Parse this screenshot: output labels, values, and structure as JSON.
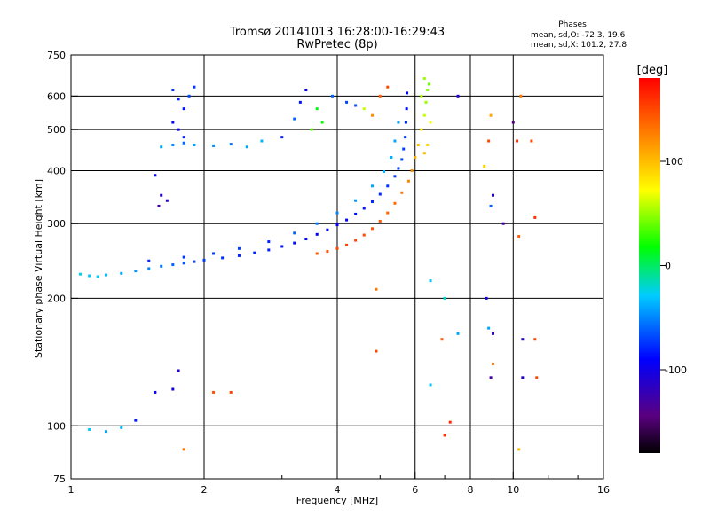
{
  "chart_data": {
    "type": "scatter",
    "title": "Tromsø 20141013 16:28:00-16:29:43",
    "subtitle": "RwPretec (8p)",
    "xlabel": "Frequency [MHz]",
    "ylabel": "Stationary phase Virtual Height [km]",
    "x_scale": "log",
    "y_scale": "log",
    "xlim": [
      1,
      16
    ],
    "ylim": [
      75,
      750
    ],
    "x_ticks": [
      1,
      2,
      4,
      6,
      8,
      10,
      16
    ],
    "x_tick_labels": [
      "1",
      "2",
      "4",
      "6",
      "8",
      "10",
      "16"
    ],
    "x_minor_ticks": [
      3,
      5,
      7,
      9,
      12,
      14
    ],
    "y_ticks": [
      75,
      100,
      200,
      300,
      400,
      500,
      600,
      750
    ],
    "y_tick_labels": [
      "75",
      "100",
      "200",
      "300",
      "400",
      "500",
      "600",
      "750"
    ],
    "grid": true,
    "phases": {
      "heading": "Phases",
      "line1": "mean, sd,O: -72.3, 19.6",
      "line2": "mean, sd,X: 101.2, 27.8"
    },
    "colorbar": {
      "label": "[deg]",
      "range": [
        -180,
        180
      ],
      "ticks": [
        100,
        0,
        -100
      ],
      "tick_labels": [
        "100",
        "0",
        "-100"
      ],
      "colormap": "rainbow"
    },
    "series": [
      {
        "points": [
          [
            1.05,
            228,
            -25
          ],
          [
            1.1,
            226,
            -30
          ],
          [
            1.15,
            225,
            -28
          ],
          [
            1.2,
            227,
            -35
          ],
          [
            1.3,
            229,
            -40
          ],
          [
            1.4,
            232,
            -45
          ],
          [
            1.5,
            235,
            -50
          ],
          [
            1.6,
            238,
            -55
          ],
          [
            1.7,
            240,
            -60
          ],
          [
            1.8,
            242,
            -65
          ],
          [
            1.9,
            244,
            -70
          ],
          [
            2.0,
            246,
            -72
          ],
          [
            2.2,
            249,
            -75
          ],
          [
            2.4,
            252,
            -78
          ],
          [
            2.6,
            256,
            -80
          ],
          [
            2.8,
            260,
            -82
          ],
          [
            3.0,
            265,
            -84
          ],
          [
            3.2,
            270,
            -86
          ],
          [
            3.4,
            276,
            -88
          ],
          [
            3.6,
            283,
            -90
          ],
          [
            3.8,
            290,
            -90
          ],
          [
            4.0,
            298,
            -90
          ],
          [
            4.2,
            306,
            -88
          ],
          [
            4.4,
            316,
            -86
          ],
          [
            4.6,
            326,
            -84
          ],
          [
            4.8,
            338,
            -80
          ],
          [
            5.0,
            352,
            -78
          ],
          [
            5.2,
            368,
            -75
          ],
          [
            5.4,
            388,
            -72
          ],
          [
            5.5,
            405,
            -70
          ],
          [
            5.6,
            425,
            -70
          ],
          [
            5.65,
            450,
            -72
          ],
          [
            5.7,
            480,
            -75
          ],
          [
            5.72,
            520,
            -80
          ],
          [
            5.74,
            560,
            -85
          ],
          [
            5.75,
            610,
            -90
          ],
          [
            1.5,
            245,
            -78
          ],
          [
            1.8,
            250,
            -75
          ],
          [
            2.1,
            255,
            -72
          ],
          [
            2.4,
            262,
            -70
          ],
          [
            2.8,
            272,
            -80
          ],
          [
            3.2,
            285,
            -60
          ],
          [
            3.6,
            300,
            -55
          ],
          [
            4.0,
            318,
            -50
          ],
          [
            4.4,
            340,
            -45
          ],
          [
            4.8,
            368,
            -40
          ],
          [
            5.1,
            398,
            -35
          ],
          [
            5.3,
            430,
            -38
          ],
          [
            5.4,
            470,
            -40
          ],
          [
            5.5,
            520,
            -42
          ],
          [
            1.7,
            620,
            -75
          ],
          [
            1.75,
            590,
            -80
          ],
          [
            1.8,
            560,
            -85
          ],
          [
            1.7,
            520,
            -90
          ],
          [
            1.75,
            500,
            -95
          ],
          [
            1.8,
            480,
            -80
          ],
          [
            1.85,
            600,
            -70
          ],
          [
            1.9,
            630,
            -75
          ],
          [
            1.6,
            455,
            -40
          ],
          [
            1.7,
            460,
            -50
          ],
          [
            1.8,
            465,
            -60
          ],
          [
            1.9,
            460,
            -45
          ],
          [
            2.1,
            458,
            -50
          ],
          [
            2.3,
            462,
            -55
          ],
          [
            2.5,
            455,
            -40
          ],
          [
            2.7,
            470,
            -35
          ],
          [
            3.0,
            480,
            -80
          ],
          [
            3.2,
            530,
            -60
          ],
          [
            3.3,
            580,
            -85
          ],
          [
            3.4,
            620,
            -95
          ],
          [
            3.6,
            560,
            15
          ],
          [
            3.7,
            520,
            20
          ],
          [
            3.5,
            500,
            40
          ],
          [
            3.9,
            600,
            -60
          ],
          [
            4.2,
            580,
            -70
          ],
          [
            4.4,
            570,
            -65
          ],
          [
            4.6,
            560,
            60
          ],
          [
            4.8,
            540,
            120
          ],
          [
            5.0,
            600,
            140
          ],
          [
            5.2,
            630,
            150
          ],
          [
            1.55,
            390,
            -90
          ],
          [
            1.6,
            350,
            -110
          ],
          [
            1.65,
            340,
            -115
          ],
          [
            1.58,
            330,
            -130
          ],
          [
            3.6,
            255,
            140
          ],
          [
            3.8,
            258,
            145
          ],
          [
            4.0,
            262,
            150
          ],
          [
            4.2,
            267,
            152
          ],
          [
            4.4,
            274,
            150
          ],
          [
            4.6,
            282,
            148
          ],
          [
            4.8,
            292,
            145
          ],
          [
            5.0,
            304,
            142
          ],
          [
            5.2,
            318,
            138
          ],
          [
            5.4,
            335,
            135
          ],
          [
            5.6,
            355,
            130
          ],
          [
            5.8,
            378,
            125
          ],
          [
            5.9,
            400,
            120
          ],
          [
            6.0,
            430,
            110
          ],
          [
            6.1,
            460,
            100
          ],
          [
            6.2,
            500,
            80
          ],
          [
            6.3,
            540,
            60
          ],
          [
            6.35,
            580,
            50
          ],
          [
            6.4,
            620,
            45
          ],
          [
            6.45,
            640,
            40
          ],
          [
            6.3,
            440,
            100
          ],
          [
            6.4,
            460,
            90
          ],
          [
            6.5,
            520,
            70
          ],
          [
            6.2,
            600,
            55
          ],
          [
            6.3,
            660,
            50
          ],
          [
            1.1,
            98,
            -30
          ],
          [
            1.2,
            97,
            -40
          ],
          [
            1.3,
            99,
            -35
          ],
          [
            1.4,
            103,
            -80
          ],
          [
            1.55,
            120,
            -95
          ],
          [
            1.7,
            122,
            -100
          ],
          [
            1.75,
            135,
            -110
          ],
          [
            2.1,
            120,
            145
          ],
          [
            2.3,
            120,
            150
          ],
          [
            1.8,
            88,
            130
          ],
          [
            4.9,
            150,
            150
          ],
          [
            6.5,
            125,
            -30
          ],
          [
            7.0,
            95,
            160
          ],
          [
            7.2,
            102,
            165
          ],
          [
            6.9,
            160,
            140
          ],
          [
            7.5,
            165,
            -40
          ],
          [
            7.0,
            200,
            -20
          ],
          [
            8.7,
            200,
            -100
          ],
          [
            8.8,
            170,
            -40
          ],
          [
            9.0,
            165,
            -110
          ],
          [
            8.9,
            130,
            -130
          ],
          [
            9.0,
            140,
            130
          ],
          [
            10.5,
            160,
            -110
          ],
          [
            11.2,
            160,
            150
          ],
          [
            10.5,
            130,
            -110
          ],
          [
            11.3,
            130,
            150
          ],
          [
            10.2,
            470,
            160
          ],
          [
            11.0,
            470,
            150
          ],
          [
            8.8,
            470,
            150
          ],
          [
            8.6,
            410,
            90
          ],
          [
            9.0,
            350,
            -110
          ],
          [
            8.9,
            330,
            -60
          ],
          [
            10.3,
            280,
            140
          ],
          [
            11.2,
            310,
            160
          ],
          [
            10.3,
            88,
            100
          ],
          [
            9.5,
            300,
            -130
          ],
          [
            7.5,
            600,
            -110
          ],
          [
            10.0,
            520,
            -140
          ],
          [
            10.4,
            600,
            130
          ],
          [
            8.9,
            540,
            110
          ],
          [
            4.9,
            210,
            130
          ],
          [
            6.5,
            220,
            -30
          ]
        ]
      }
    ]
  }
}
